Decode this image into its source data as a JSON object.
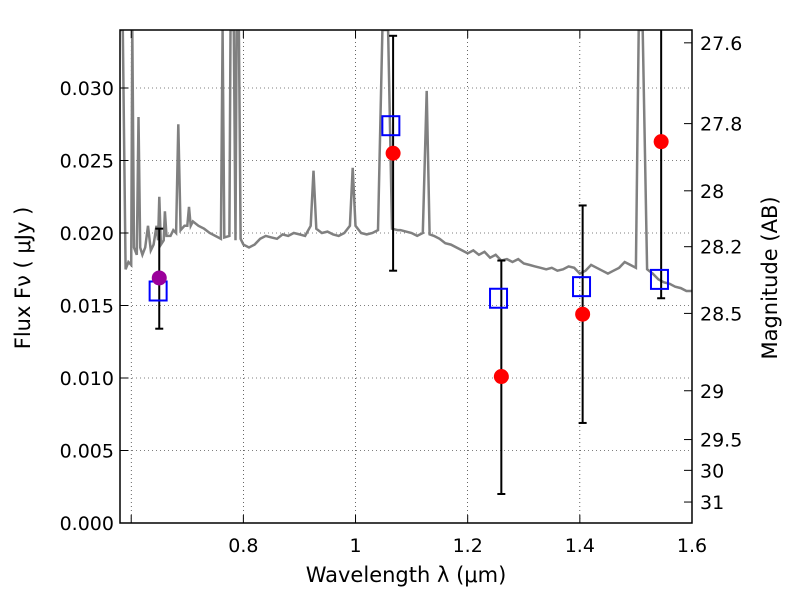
{
  "chart_data": {
    "type": "scatter",
    "xlabel": "Wavelength  λ (μm)",
    "ylabel": "Flux  Fν  ( μJy )",
    "y2label": "Magnitude (AB)",
    "xlim": [
      0.58,
      1.6
    ],
    "ylim": [
      0.0,
      0.034
    ],
    "grid": true,
    "x_ticks": [
      {
        "value": 0.6,
        "label": ""
      },
      {
        "value": 0.8,
        "label": "0.8"
      },
      {
        "value": 1.0,
        "label": "1"
      },
      {
        "value": 1.2,
        "label": "1.2"
      },
      {
        "value": 1.4,
        "label": "1.4"
      },
      {
        "value": 1.6,
        "label": "1.6"
      }
    ],
    "y_ticks": [
      {
        "value": 0.0,
        "label": "0.000"
      },
      {
        "value": 0.005,
        "label": "0.005"
      },
      {
        "value": 0.01,
        "label": "0.010"
      },
      {
        "value": 0.015,
        "label": "0.015"
      },
      {
        "value": 0.02,
        "label": "0.020"
      },
      {
        "value": 0.025,
        "label": "0.025"
      },
      {
        "value": 0.03,
        "label": "0.030"
      }
    ],
    "y2_ticks": [
      {
        "value": 27.6,
        "label": "27.6"
      },
      {
        "value": 27.8,
        "label": "27.8"
      },
      {
        "value": 28.0,
        "label": "28"
      },
      {
        "value": 28.2,
        "label": "28.2"
      },
      {
        "value": 28.5,
        "label": "28.5"
      },
      {
        "value": 29.0,
        "label": "29"
      },
      {
        "value": 29.5,
        "label": "29.5"
      },
      {
        "value": 30.0,
        "label": "30"
      },
      {
        "value": 31.0,
        "label": "31"
      }
    ],
    "spectrum": {
      "color": "#808080",
      "points": [
        [
          0.58,
          0.034
        ],
        [
          0.585,
          0.034
        ],
        [
          0.59,
          0.0175
        ],
        [
          0.595,
          0.018
        ],
        [
          0.6,
          0.0178
        ],
        [
          0.602,
          0.034
        ],
        [
          0.605,
          0.019
        ],
        [
          0.61,
          0.0185
        ],
        [
          0.613,
          0.028
        ],
        [
          0.616,
          0.019
        ],
        [
          0.62,
          0.0185
        ],
        [
          0.625,
          0.019
        ],
        [
          0.63,
          0.0205
        ],
        [
          0.635,
          0.0188
        ],
        [
          0.64,
          0.0192
        ],
        [
          0.645,
          0.0205
        ],
        [
          0.648,
          0.0195
        ],
        [
          0.65,
          0.0225
        ],
        [
          0.653,
          0.0192
        ],
        [
          0.658,
          0.0195
        ],
        [
          0.66,
          0.0215
        ],
        [
          0.663,
          0.0198
        ],
        [
          0.67,
          0.0198
        ],
        [
          0.675,
          0.0202
        ],
        [
          0.68,
          0.02
        ],
        [
          0.684,
          0.0275
        ],
        [
          0.688,
          0.0202
        ],
        [
          0.695,
          0.0205
        ],
        [
          0.7,
          0.0205
        ],
        [
          0.703,
          0.0218
        ],
        [
          0.706,
          0.0205
        ],
        [
          0.71,
          0.0208
        ],
        [
          0.72,
          0.0205
        ],
        [
          0.73,
          0.0203
        ],
        [
          0.74,
          0.02
        ],
        [
          0.75,
          0.0198
        ],
        [
          0.76,
          0.0196
        ],
        [
          0.763,
          0.034
        ],
        [
          0.766,
          0.0197
        ],
        [
          0.775,
          0.0198
        ],
        [
          0.777,
          0.034
        ],
        [
          0.783,
          0.034
        ],
        [
          0.786,
          0.0195
        ],
        [
          0.788,
          0.034
        ],
        [
          0.792,
          0.034
        ],
        [
          0.795,
          0.0196
        ],
        [
          0.8,
          0.0192
        ],
        [
          0.81,
          0.019
        ],
        [
          0.82,
          0.0192
        ],
        [
          0.83,
          0.0196
        ],
        [
          0.84,
          0.0198
        ],
        [
          0.85,
          0.0197
        ],
        [
          0.86,
          0.0196
        ],
        [
          0.87,
          0.0199
        ],
        [
          0.88,
          0.0198
        ],
        [
          0.89,
          0.02
        ],
        [
          0.9,
          0.0199
        ],
        [
          0.91,
          0.0198
        ],
        [
          0.92,
          0.0205
        ],
        [
          0.925,
          0.0243
        ],
        [
          0.93,
          0.0203
        ],
        [
          0.94,
          0.02
        ],
        [
          0.95,
          0.0201
        ],
        [
          0.96,
          0.0199
        ],
        [
          0.97,
          0.0198
        ],
        [
          0.98,
          0.02
        ],
        [
          0.99,
          0.0205
        ],
        [
          0.995,
          0.0245
        ],
        [
          1.0,
          0.0205
        ],
        [
          1.01,
          0.02
        ],
        [
          1.02,
          0.0199
        ],
        [
          1.03,
          0.02
        ],
        [
          1.04,
          0.0202
        ],
        [
          1.048,
          0.034
        ],
        [
          1.058,
          0.034
        ],
        [
          1.065,
          0.0203
        ],
        [
          1.075,
          0.0202
        ],
        [
          1.08,
          0.0202
        ],
        [
          1.09,
          0.0201
        ],
        [
          1.1,
          0.02
        ],
        [
          1.11,
          0.0198
        ],
        [
          1.12,
          0.02
        ],
        [
          1.127,
          0.0298
        ],
        [
          1.132,
          0.0199
        ],
        [
          1.14,
          0.0198
        ],
        [
          1.15,
          0.0196
        ],
        [
          1.16,
          0.0193
        ],
        [
          1.17,
          0.0192
        ],
        [
          1.18,
          0.019
        ],
        [
          1.19,
          0.0188
        ],
        [
          1.2,
          0.0186
        ],
        [
          1.21,
          0.0188
        ],
        [
          1.22,
          0.0185
        ],
        [
          1.23,
          0.0187
        ],
        [
          1.24,
          0.0183
        ],
        [
          1.25,
          0.0185
        ],
        [
          1.26,
          0.0181
        ],
        [
          1.27,
          0.0182
        ],
        [
          1.28,
          0.018
        ],
        [
          1.29,
          0.0182
        ],
        [
          1.3,
          0.0179
        ],
        [
          1.31,
          0.0178
        ],
        [
          1.32,
          0.0177
        ],
        [
          1.33,
          0.0176
        ],
        [
          1.34,
          0.0175
        ],
        [
          1.35,
          0.0176
        ],
        [
          1.36,
          0.0174
        ],
        [
          1.37,
          0.0175
        ],
        [
          1.38,
          0.0177
        ],
        [
          1.39,
          0.0176
        ],
        [
          1.4,
          0.0172
        ],
        [
          1.41,
          0.0174
        ],
        [
          1.42,
          0.0178
        ],
        [
          1.43,
          0.0176
        ],
        [
          1.44,
          0.0174
        ],
        [
          1.45,
          0.0172
        ],
        [
          1.46,
          0.0174
        ],
        [
          1.47,
          0.0176
        ],
        [
          1.48,
          0.018
        ],
        [
          1.49,
          0.0178
        ],
        [
          1.5,
          0.0176
        ],
        [
          1.505,
          0.034
        ],
        [
          1.512,
          0.034
        ],
        [
          1.52,
          0.0175
        ],
        [
          1.53,
          0.0172
        ],
        [
          1.54,
          0.0168
        ],
        [
          1.55,
          0.0166
        ],
        [
          1.56,
          0.0165
        ],
        [
          1.57,
          0.0163
        ],
        [
          1.58,
          0.0162
        ],
        [
          1.59,
          0.016
        ],
        [
          1.6,
          0.016
        ]
      ]
    },
    "series": [
      {
        "marker": "square",
        "color": "#0000ff",
        "points": [
          {
            "x": 0.648,
            "y": 0.016
          },
          {
            "x": 1.063,
            "y": 0.0274
          },
          {
            "x": 1.255,
            "y": 0.0155
          },
          {
            "x": 1.403,
            "y": 0.0163
          },
          {
            "x": 1.542,
            "y": 0.0168
          }
        ]
      },
      {
        "marker": "circle",
        "color": "#ff0000",
        "points": [
          {
            "x": 0.65,
            "y": 0.0169,
            "yerr": [
              0.0134,
              0.0203
            ],
            "color": "#9b009b"
          },
          {
            "x": 1.067,
            "y": 0.0255,
            "yerr": [
              0.0174,
              0.0336
            ]
          },
          {
            "x": 1.26,
            "y": 0.0101,
            "yerr": [
              0.002,
              0.0181
            ]
          },
          {
            "x": 1.405,
            "y": 0.0144,
            "yerr": [
              0.0069,
              0.0219
            ]
          },
          {
            "x": 1.545,
            "y": 0.0263,
            "yerr": [
              0.0155,
              0.034
            ]
          }
        ]
      }
    ]
  }
}
